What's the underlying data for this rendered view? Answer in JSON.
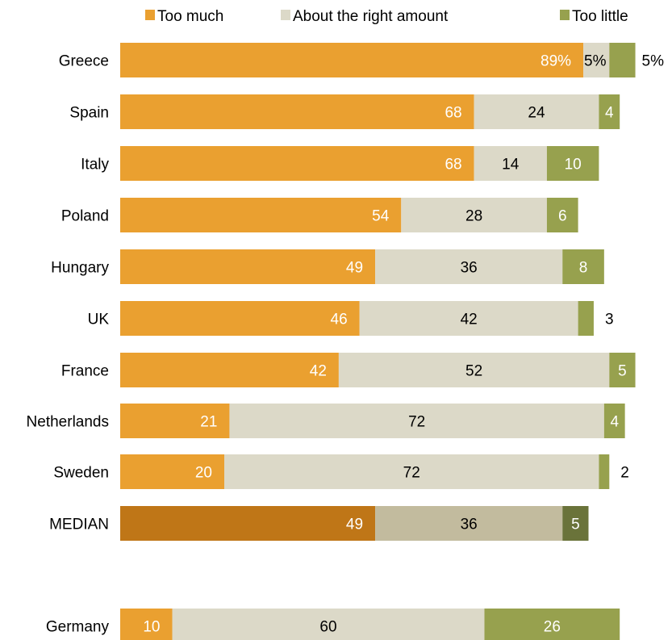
{
  "chart_data": {
    "type": "bar",
    "orientation": "horizontal",
    "stacked": true,
    "legend_position": "top",
    "categories": [
      "Greece",
      "Spain",
      "Italy",
      "Poland",
      "Hungary",
      "UK",
      "France",
      "Netherlands",
      "Sweden",
      "MEDIAN",
      "Germany"
    ],
    "series": [
      {
        "name": "Too much",
        "values": [
          89,
          68,
          68,
          54,
          49,
          46,
          42,
          21,
          20,
          49,
          10
        ]
      },
      {
        "name": "About the right amount",
        "values": [
          5,
          24,
          14,
          28,
          36,
          42,
          52,
          72,
          72,
          36,
          60
        ]
      },
      {
        "name": "Too little",
        "values": [
          5,
          4,
          10,
          6,
          8,
          3,
          5,
          4,
          2,
          5,
          26
        ]
      }
    ],
    "value_labels": [
      [
        "89%",
        "5%",
        "5%"
      ],
      [
        "68",
        "24",
        "4"
      ],
      [
        "68",
        "14",
        "10"
      ],
      [
        "54",
        "28",
        "6"
      ],
      [
        "49",
        "36",
        "8"
      ],
      [
        "46",
        "42",
        "3"
      ],
      [
        "42",
        "52",
        "5"
      ],
      [
        "21",
        "72",
        "4"
      ],
      [
        "20",
        "72",
        "2"
      ],
      [
        "49",
        "36",
        "5"
      ],
      [
        "10",
        "60",
        "26"
      ]
    ],
    "colors": {
      "too_much": "#eaa030",
      "about_right": "#dcd9c8",
      "too_little": "#97a14e",
      "median_too_much": "#bf7617",
      "median_about_right": "#c2bb9e",
      "median_too_little": "#6a733a"
    }
  }
}
